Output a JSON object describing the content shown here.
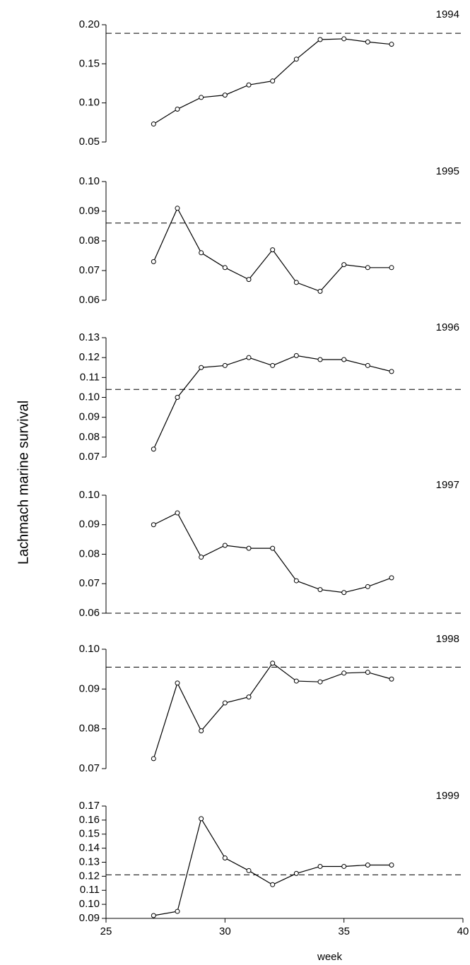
{
  "ylabel": "Lachmach marine survival",
  "chart_data": [
    {
      "type": "line",
      "title": "1994",
      "x": [
        27,
        28,
        29,
        30,
        31,
        32,
        33,
        34,
        35,
        36,
        37
      ],
      "values": [
        0.073,
        0.092,
        0.107,
        0.11,
        0.123,
        0.128,
        0.156,
        0.181,
        0.182,
        0.178,
        0.175
      ],
      "reference_line": 0.189,
      "xlim": [
        25,
        40
      ],
      "ylim": [
        0.05,
        0.2
      ],
      "yticks": [
        0.05,
        {
          "value": 0.1,
          "label": "0.10"
        },
        0.15,
        {
          "value": 0.2,
          "label": "0.20"
        }
      ]
    },
    {
      "type": "line",
      "title": "1995",
      "x": [
        27,
        28,
        29,
        30,
        31,
        32,
        33,
        34,
        35,
        36,
        37
      ],
      "values": [
        0.073,
        0.091,
        0.076,
        0.071,
        0.067,
        0.077,
        0.066,
        0.063,
        0.072,
        0.071,
        0.071
      ],
      "reference_line": 0.086,
      "xlim": [
        25,
        40
      ],
      "ylim": [
        0.06,
        0.1
      ],
      "yticks": [
        {
          "value": 0.06,
          "label": "0.06"
        },
        {
          "value": 0.07,
          "label": "0.07"
        },
        {
          "value": 0.08,
          "label": "0.08"
        },
        {
          "value": 0.09,
          "label": "0.09"
        },
        {
          "value": 0.1,
          "label": "0.10"
        }
      ]
    },
    {
      "type": "line",
      "title": "1996",
      "x": [
        27,
        28,
        29,
        30,
        31,
        32,
        33,
        34,
        35,
        36,
        37
      ],
      "values": [
        0.074,
        0.1,
        0.115,
        0.116,
        0.12,
        0.116,
        0.121,
        0.119,
        0.119,
        0.116,
        0.113
      ],
      "reference_line": 0.104,
      "xlim": [
        25,
        40
      ],
      "ylim": [
        0.07,
        0.13
      ],
      "yticks": [
        0.07,
        0.08,
        0.09,
        {
          "value": 0.1,
          "label": "0.10"
        },
        0.11,
        0.12,
        0.13
      ]
    },
    {
      "type": "line",
      "title": "1997",
      "x": [
        27,
        28,
        29,
        30,
        31,
        32,
        33,
        34,
        35,
        36,
        37
      ],
      "values": [
        0.09,
        0.094,
        0.079,
        0.083,
        0.082,
        0.082,
        0.071,
        0.068,
        0.067,
        0.069,
        0.072
      ],
      "reference_line": 0.06,
      "xlim": [
        25,
        40
      ],
      "ylim": [
        0.06,
        0.1
      ],
      "yticks": [
        0.06,
        0.07,
        0.08,
        0.09,
        {
          "value": 0.1,
          "label": "0.10"
        }
      ]
    },
    {
      "type": "line",
      "title": "1998",
      "x": [
        27,
        28,
        29,
        30,
        31,
        32,
        33,
        34,
        35,
        36,
        37
      ],
      "values": [
        0.0725,
        0.0915,
        0.0795,
        0.0865,
        0.088,
        0.0965,
        0.092,
        0.0918,
        0.094,
        0.0942,
        0.0925
      ],
      "reference_line": 0.0955,
      "xlim": [
        25,
        40
      ],
      "ylim": [
        0.07,
        0.1
      ],
      "yticks": [
        0.07,
        0.08,
        0.09,
        {
          "value": 0.1,
          "label": "0.10"
        }
      ]
    },
    {
      "type": "line",
      "title": "1999",
      "x": [
        27,
        28,
        29,
        30,
        31,
        32,
        33,
        34,
        35,
        36,
        37
      ],
      "values": [
        0.092,
        0.095,
        0.161,
        0.133,
        0.124,
        0.114,
        0.122,
        0.127,
        0.127,
        0.128,
        0.128
      ],
      "reference_line": 0.121,
      "xlim": [
        25,
        40
      ],
      "ylim": [
        0.09,
        0.17
      ],
      "yticks": [
        0.09,
        {
          "value": 0.1,
          "label": "0.10"
        },
        0.11,
        0.12,
        0.13,
        0.14,
        0.15,
        0.16,
        0.17
      ],
      "xticks": [
        25,
        30,
        35,
        40
      ],
      "xlabel": "week"
    }
  ]
}
